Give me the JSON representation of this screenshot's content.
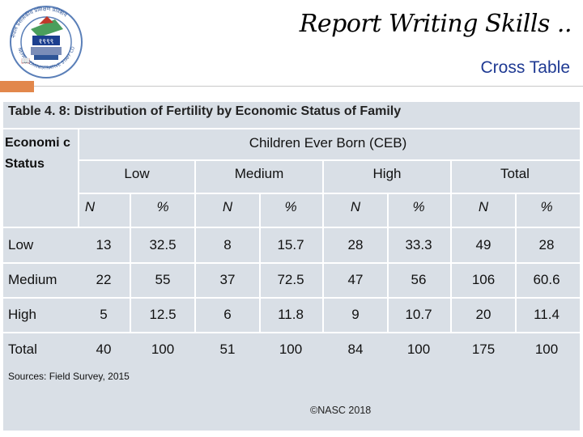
{
  "header": {
    "title": "Report Writing Skills ..",
    "subtitle": "Cross Table",
    "logo_text": "नेपाल प्रशासकीय प्रशिक्षण प्रतिष्ठान NEPAL ADMINISTRATIVE STAFF COLLEGE",
    "logo_year": "१९९९"
  },
  "table": {
    "caption": "Table 4. 8: Distribution of Fertility by Economic Status of Family",
    "row_header": "Economi c Status",
    "group_header": "Children Ever Born (CEB)",
    "groups": [
      "Low",
      "Medium",
      "High",
      "Total"
    ],
    "subcols": [
      "N",
      "%",
      "N",
      "%",
      "N",
      "%",
      "N",
      "%"
    ],
    "rows": [
      {
        "label": "Low",
        "values": [
          "13",
          "32.5",
          "8",
          "15.7",
          "28",
          "33.3",
          "49",
          "28"
        ]
      },
      {
        "label": "Medium",
        "values": [
          "22",
          "55",
          "37",
          "72.5",
          "47",
          "56",
          "106",
          "60.6"
        ]
      },
      {
        "label": "High",
        "values": [
          "5",
          "12.5",
          "6",
          "11.8",
          "9",
          "10.7",
          "20",
          "11.4"
        ]
      },
      {
        "label": "Total",
        "values": [
          "40",
          "100",
          "51",
          "100",
          "84",
          "100",
          "175",
          "100"
        ]
      }
    ],
    "source": "Sources: Field Survey, 2015"
  },
  "footer": {
    "copyright": "©NASC 2018"
  },
  "colors": {
    "accent": "#e2874b",
    "panel": "#d9dfe6",
    "subtitle": "#1f3a93"
  }
}
